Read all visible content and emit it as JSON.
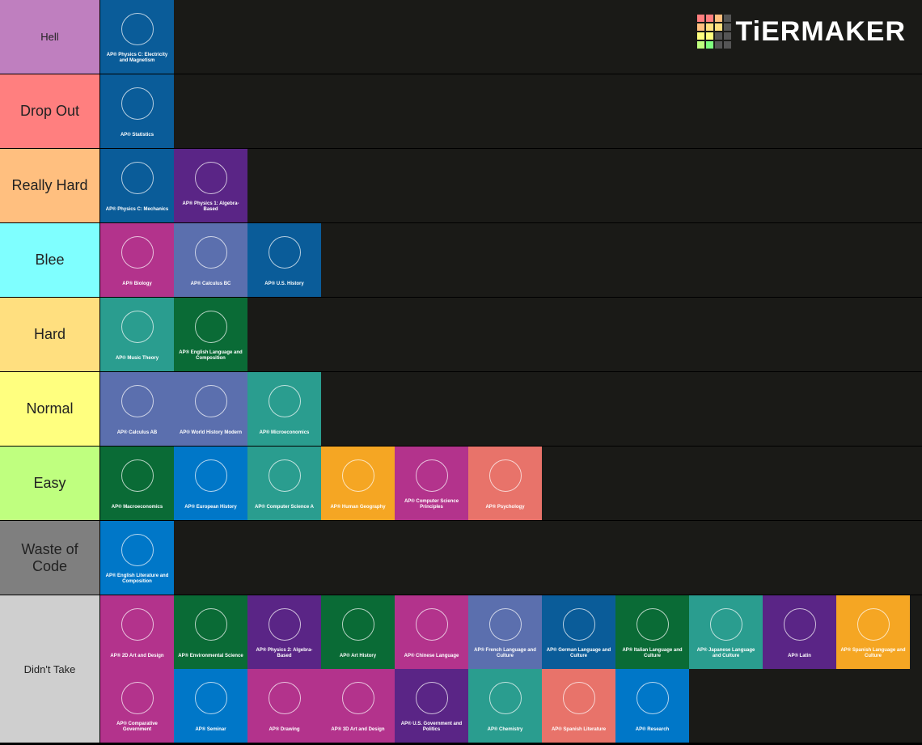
{
  "logo": "TiERMAKER",
  "tiers": [
    {
      "label": "Hell",
      "color": "#bf7fbf",
      "items": [
        {
          "label": "AP® Physics C: Electricity and Magnetism",
          "color": "#0a5c99"
        }
      ]
    },
    {
      "label": "Drop Out",
      "color": "#ff7f7f",
      "items": [
        {
          "label": "AP® Statistics",
          "color": "#0a5c99"
        }
      ]
    },
    {
      "label": "Really Hard",
      "color": "#ffbf7f",
      "items": [
        {
          "label": "AP® Physics C: Mechanics",
          "color": "#0a5c99"
        },
        {
          "label": "AP® Physics 1: Algebra-Based",
          "color": "#5a2586"
        }
      ]
    },
    {
      "label": "Blee",
      "color": "#7fffff",
      "items": [
        {
          "label": "AP® Biology",
          "color": "#b3338c"
        },
        {
          "label": "AP® Calculus BC",
          "color": "#5b6fae"
        },
        {
          "label": "AP® U.S. History",
          "color": "#0a5c99"
        }
      ]
    },
    {
      "label": "Hard",
      "color": "#ffdf7f",
      "items": [
        {
          "label": "AP® Music Theory",
          "color": "#2a9d8f"
        },
        {
          "label": "AP® English Language and Composition",
          "color": "#0a6b36"
        }
      ]
    },
    {
      "label": "Normal",
      "color": "#ffff7f",
      "items": [
        {
          "label": "AP® Calculus AB",
          "color": "#5b6fae"
        },
        {
          "label": "AP® World History Modern",
          "color": "#5b6fae"
        },
        {
          "label": "AP® Microeconomics",
          "color": "#2a9d8f"
        }
      ]
    },
    {
      "label": "Easy",
      "color": "#bfff7f",
      "items": [
        {
          "label": "AP® Macroeconomics",
          "color": "#0a6b36"
        },
        {
          "label": "AP® European History",
          "color": "#0077c8"
        },
        {
          "label": "AP® Computer Science A",
          "color": "#2a9d8f"
        },
        {
          "label": "AP® Human Geography",
          "color": "#f5a623"
        },
        {
          "label": "AP® Computer Science Principles",
          "color": "#b3338c"
        },
        {
          "label": "AP® Psychology",
          "color": "#e8736a"
        }
      ]
    },
    {
      "label": "Waste of Code",
      "color": "#7f7f7f",
      "items": [
        {
          "label": "AP® English Literature and Composition",
          "color": "#0077c8"
        }
      ]
    },
    {
      "label": "Didn't Take",
      "color": "#cfcfcf",
      "items": [
        {
          "label": "AP® 2D Art and Design",
          "color": "#b3338c"
        },
        {
          "label": "AP® Environmental Science",
          "color": "#0a6b36"
        },
        {
          "label": "AP® Physics 2: Algebra-Based",
          "color": "#5a2586"
        },
        {
          "label": "AP® Art History",
          "color": "#0a6b36"
        },
        {
          "label": "AP® Chinese Language",
          "color": "#b3338c"
        },
        {
          "label": "AP® French Language and Culture",
          "color": "#5b6fae"
        },
        {
          "label": "AP® German Language and Culture",
          "color": "#0a5c99"
        },
        {
          "label": "AP® Italian Language and Culture",
          "color": "#0a6b36"
        },
        {
          "label": "AP® Japanese Language and Culture",
          "color": "#2a9d8f"
        },
        {
          "label": "AP® Latin",
          "color": "#5a2586"
        },
        {
          "label": "AP® Spanish Language and Culture",
          "color": "#f5a623"
        },
        {
          "label": "AP® Comparative Government",
          "color": "#b3338c"
        },
        {
          "label": "AP® Seminar",
          "color": "#0077c8"
        },
        {
          "label": "AP® Drawing",
          "color": "#b3338c"
        },
        {
          "label": "AP® 3D Art and Design",
          "color": "#b3338c"
        },
        {
          "label": "AP® U.S. Government and Politics",
          "color": "#5a2586"
        },
        {
          "label": "AP® Chemistry",
          "color": "#2a9d8f"
        },
        {
          "label": "AP® Spanish Literature",
          "color": "#e8736a"
        },
        {
          "label": "AP® Research",
          "color": "#0077c8"
        }
      ]
    }
  ]
}
